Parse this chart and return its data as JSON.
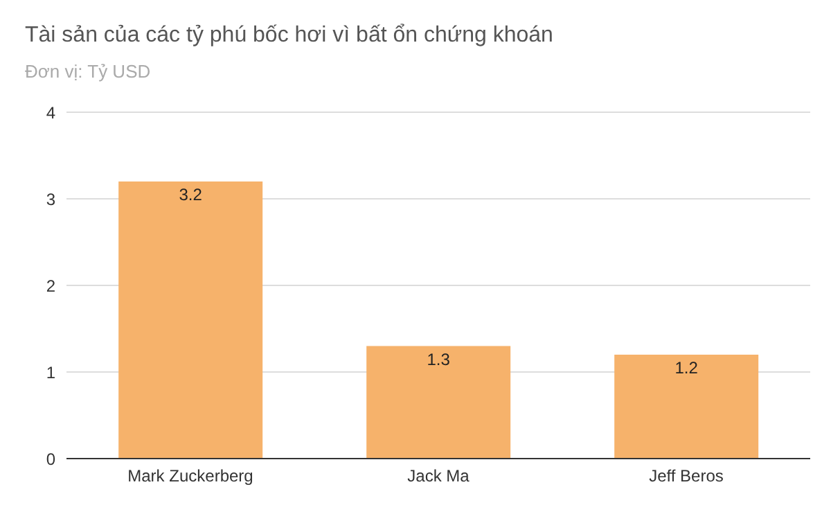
{
  "chart_data": {
    "type": "bar",
    "title": "Tài sản của các tỷ phú bốc hơi vì bất ổn chứng khoán",
    "subtitle": "Đơn vị: Tỷ USD",
    "categories": [
      "Mark Zuckerberg",
      "Jack Ma",
      "Jeff Beros"
    ],
    "values": [
      3.2,
      1.3,
      1.2
    ],
    "color": "#f6b26b",
    "ylim": [
      0,
      4
    ],
    "yticks": [
      0,
      1,
      2,
      3,
      4
    ],
    "grid": "y",
    "data_labels": true
  }
}
